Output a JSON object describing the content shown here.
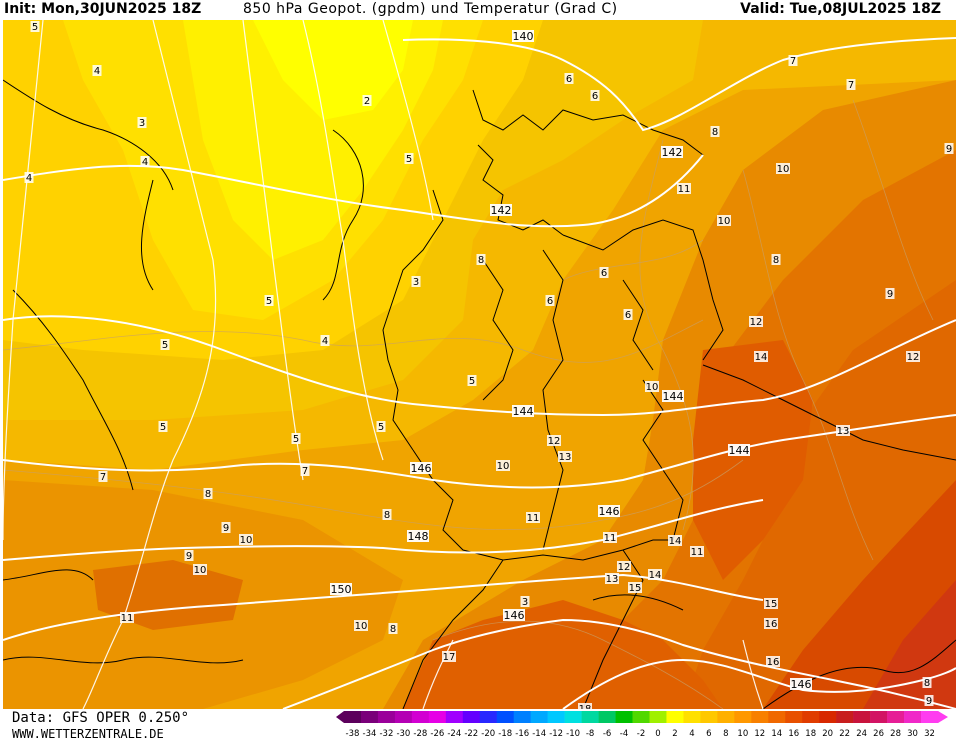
{
  "header": {
    "init": "Init: Mon,30JUN2025 18Z",
    "title": "850 hPa Geopot. (gpdm) und Temperatur (Grad C)",
    "valid": "Valid: Tue,08JUL2025 18Z"
  },
  "footer": {
    "data_source": "Data: GFS OPER 0.250°",
    "website": "WWW.WETTERZENTRALE.DE"
  },
  "colors": {
    "yellow": "#ffff00",
    "gold": "#ffd700",
    "amber": "#f5b800",
    "orange": "#f0a000",
    "orange_dark": "#e88a00",
    "red_orange": "#e06400",
    "red": "#d84000",
    "dark_red": "#c02818"
  },
  "colorbar": {
    "labels": [
      "-38",
      "-34",
      "-32",
      "-30",
      "-28",
      "-26",
      "-24",
      "-22",
      "-20",
      "-18",
      "-16",
      "-14",
      "-12",
      "-10",
      "-8",
      "-6",
      "-4",
      "-2",
      "0",
      "2",
      "4",
      "6",
      "8",
      "10",
      "12",
      "14",
      "16",
      "18",
      "20",
      "22",
      "24",
      "26",
      "28",
      "30",
      "32"
    ],
    "colors": [
      "#5c005c",
      "#7a007a",
      "#9a009a",
      "#b400b4",
      "#d200d2",
      "#e600e6",
      "#a000ff",
      "#6400ff",
      "#2828ff",
      "#0050ff",
      "#0080ff",
      "#00a8ff",
      "#00c8ff",
      "#00e0e0",
      "#00d8a0",
      "#00c864",
      "#00c000",
      "#50d800",
      "#a0f000",
      "#ffff00",
      "#ffe000",
      "#ffc800",
      "#ffb000",
      "#ff9800",
      "#f88000",
      "#f06800",
      "#e85000",
      "#e03c00",
      "#d82800",
      "#c81e1e",
      "#c8143c",
      "#d21464",
      "#e61e96",
      "#f028c8",
      "#ff3cf0"
    ]
  },
  "geopotential_labels": [
    "140",
    "142",
    "142",
    "144",
    "144",
    "144",
    "146",
    "146",
    "146",
    "146",
    "148",
    "150"
  ],
  "temperature_labels": [
    "5",
    "4",
    "2",
    "3",
    "4",
    "4",
    "5",
    "5",
    "3",
    "4",
    "5",
    "5",
    "5",
    "5",
    "5",
    "6",
    "6",
    "7",
    "7",
    "8",
    "9",
    "10",
    "11",
    "10",
    "8",
    "9",
    "8",
    "6",
    "6",
    "6",
    "7",
    "7",
    "8",
    "8",
    "9",
    "10",
    "11",
    "11",
    "10",
    "12",
    "13",
    "10",
    "12",
    "12",
    "14",
    "13",
    "14",
    "11",
    "12",
    "13",
    "14",
    "15",
    "15",
    "16",
    "16",
    "17",
    "18",
    "8",
    "9",
    "9",
    "10",
    "11",
    "10",
    "8",
    "3"
  ]
}
